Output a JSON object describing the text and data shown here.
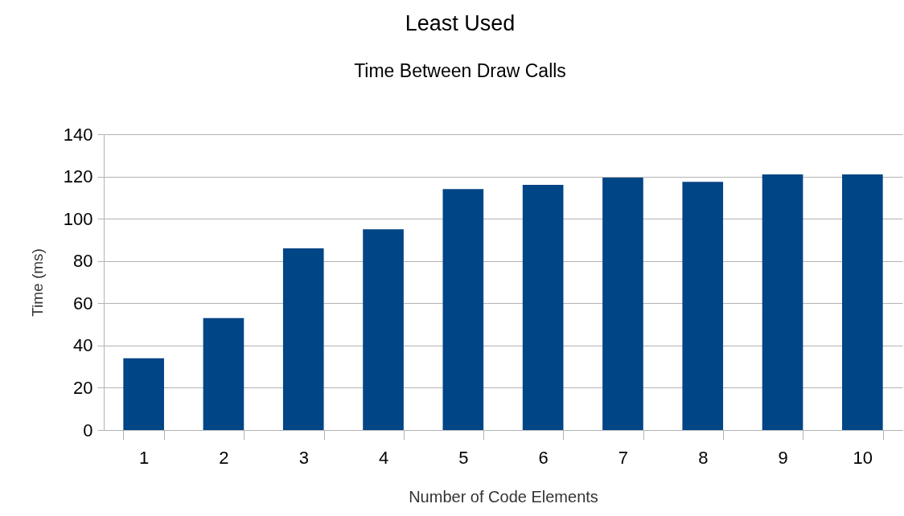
{
  "chart_data": {
    "type": "bar",
    "title": "Least Used",
    "subtitle": "Time Between Draw Calls",
    "xlabel": "Number of Code Elements",
    "ylabel": "Time (ms)",
    "categories": [
      "1",
      "2",
      "3",
      "4",
      "5",
      "6",
      "7",
      "8",
      "9",
      "10"
    ],
    "values": [
      34,
      53,
      86,
      95,
      114,
      116,
      119.5,
      117.5,
      121,
      121
    ],
    "color": "#004586",
    "ylim": [
      0,
      140
    ],
    "yticks": [
      0,
      20,
      40,
      60,
      80,
      100,
      120,
      140
    ],
    "grid": "y"
  }
}
